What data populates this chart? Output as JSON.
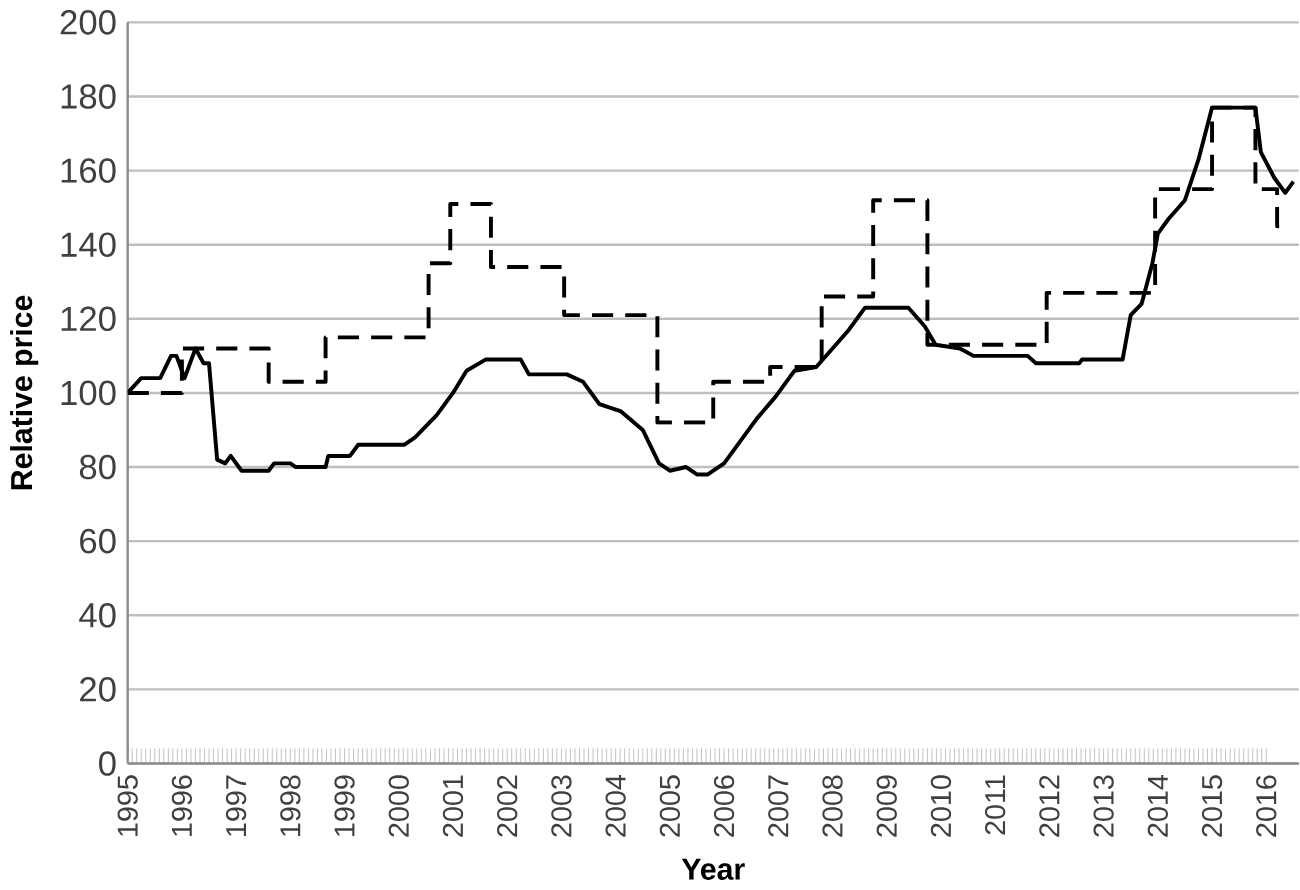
{
  "chart_data": {
    "type": "line",
    "xlabel": "Year",
    "ylabel": "Relative price",
    "xlim": [
      1995,
      2016.6
    ],
    "xticks": [
      {
        "value": 1995,
        "label": "1995"
      },
      {
        "value": 1996,
        "label": "1996"
      },
      {
        "value": 1997,
        "label": "1997"
      },
      {
        "value": 1998,
        "label": "1998"
      },
      {
        "value": 1999,
        "label": "1999"
      },
      {
        "value": 2000,
        "label": "2000"
      },
      {
        "value": 2001,
        "label": "2001"
      },
      {
        "value": 2002,
        "label": "2002"
      },
      {
        "value": 2003,
        "label": "2003"
      },
      {
        "value": 2004,
        "label": "2004"
      },
      {
        "value": 2005,
        "label": "2005"
      },
      {
        "value": 2006,
        "label": "2006"
      },
      {
        "value": 2007,
        "label": "2007"
      },
      {
        "value": 2008,
        "label": "2008"
      },
      {
        "value": 2009,
        "label": "2009"
      },
      {
        "value": 2010,
        "label": "2010"
      },
      {
        "value": 2011,
        "label": "2011"
      },
      {
        "value": 2012,
        "label": "2012"
      },
      {
        "value": 2013,
        "label": "2013"
      },
      {
        "value": 2014,
        "label": "2014"
      },
      {
        "value": 2015,
        "label": "2015"
      },
      {
        "value": 2016,
        "label": "2016"
      }
    ],
    "ylim": [
      0,
      200
    ],
    "yticks": [
      0,
      20,
      40,
      60,
      80,
      100,
      120,
      140,
      160,
      180,
      200
    ],
    "grid": "y",
    "series": [
      {
        "type": "line",
        "color": "#000000",
        "line_style": "solid",
        "x": [
          1995.0,
          1995.25,
          1995.6,
          1995.8,
          1995.9,
          1996.05,
          1996.25,
          1996.4,
          1996.5,
          1996.65,
          1996.8,
          1996.9,
          1997.1,
          1997.6,
          1997.7,
          1998.0,
          1998.1,
          1998.65,
          1998.7,
          1999.1,
          1999.25,
          2000.1,
          2000.3,
          2000.7,
          2001.0,
          2001.25,
          2001.6,
          2002.25,
          2002.4,
          2003.1,
          2003.4,
          2003.7,
          2004.1,
          2004.5,
          2004.8,
          2005.0,
          2005.3,
          2005.5,
          2005.7,
          2006.0,
          2006.2,
          2006.6,
          2006.95,
          2007.3,
          2007.7,
          2008.0,
          2008.3,
          2008.6,
          2009.4,
          2009.7,
          2009.9,
          2010.35,
          2010.6,
          2011.6,
          2011.75,
          2012.55,
          2012.6,
          2013.35,
          2013.5,
          2013.7,
          2013.9,
          2014.0,
          2014.2,
          2014.5,
          2014.75,
          2015.0,
          2015.8,
          2015.9,
          2016.15,
          2016.35,
          2016.5
        ],
        "values": [
          100,
          104,
          104,
          110,
          110,
          104,
          112,
          108,
          108,
          82,
          81,
          83,
          79,
          79,
          81,
          81,
          80,
          80,
          83,
          83,
          86,
          86,
          88,
          94,
          100,
          106,
          109,
          109,
          105,
          105,
          103,
          97,
          95,
          90,
          81,
          79,
          80,
          78,
          78,
          81,
          85,
          93,
          99,
          106,
          107,
          112,
          117,
          123,
          123,
          118,
          113,
          112,
          110,
          110,
          108,
          108,
          109,
          109,
          121,
          124,
          135,
          143,
          147,
          152,
          163,
          177,
          177,
          165,
          158,
          154,
          157
        ]
      },
      {
        "type": "step",
        "color": "#000000",
        "line_style": "dashed",
        "x": [
          1995.0,
          1996.0,
          1997.6,
          1998.65,
          2000.55,
          2000.95,
          2001.7,
          2003.05,
          2004.77,
          2005.8,
          2006.85,
          2007.8,
          2008.75,
          2009.75,
          2011.95,
          2013.95,
          2015.0,
          2015.8,
          2016.2,
          2016.3
        ],
        "values": [
          100,
          112,
          103,
          115,
          135,
          151,
          134,
          121,
          92,
          103,
          107,
          126,
          152,
          113,
          127,
          155,
          177,
          155,
          145,
          145
        ]
      }
    ]
  }
}
